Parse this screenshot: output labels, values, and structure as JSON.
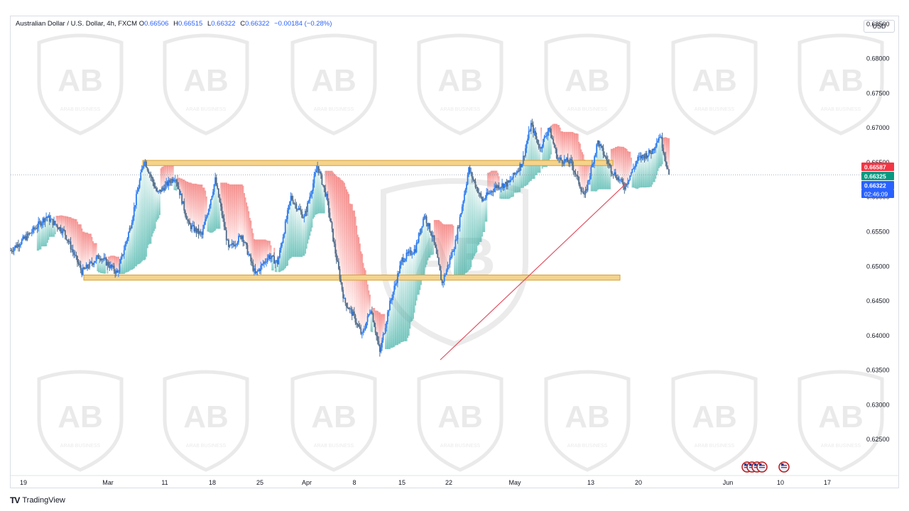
{
  "header": {
    "symbol": "Australian Dollar / U.S. Dollar, 4h, FXCM",
    "o_label": "O",
    "o_value": "0.66506",
    "h_label": "H",
    "h_value": "0.66515",
    "l_label": "L",
    "l_value": "0.66322",
    "c_label": "C",
    "c_value": "0.66322",
    "change": "−0.00184 (−0.28%)"
  },
  "currency_button": "USD",
  "footer": {
    "logo": "TV",
    "brand": "TradingView"
  },
  "watermark": {
    "logo": "AB",
    "text": "ARAB BUSINESS"
  },
  "colors": {
    "up": "#2e7df0",
    "down": "#4f6b8a",
    "price_line": "#2962ff",
    "cloud_up": "#26a69a",
    "cloud_down": "#ef5350",
    "zone_fill": "#f5d38a",
    "zone_border": "#d4a13a",
    "trendline": "#e05263",
    "tag_red": "#f23645",
    "tag_green": "#089981",
    "tag_blue": "#2962ff"
  },
  "chart_data": {
    "type": "candlestick",
    "title": "Australian Dollar / U.S. Dollar, 4h, FXCM",
    "ylim": [
      0.62,
      0.686
    ],
    "y_ticks": [
      "0.68500",
      "0.68000",
      "0.67500",
      "0.67000",
      "0.66500",
      "0.66000",
      "0.65500",
      "0.65000",
      "0.64500",
      "0.64000",
      "0.63500",
      "0.63000",
      "0.62500"
    ],
    "x_ticks": [
      "19",
      "Mar",
      "11",
      "18",
      "25",
      "Apr",
      "8",
      "15",
      "22",
      "May",
      "13",
      "20",
      "Jun",
      "10",
      "17"
    ],
    "price_path": [
      {
        "d": 0,
        "p": 0.6523
      },
      {
        "d": 4,
        "p": 0.6545
      },
      {
        "d": 8,
        "p": 0.6572
      },
      {
        "d": 12,
        "p": 0.655
      },
      {
        "d": 16,
        "p": 0.6492
      },
      {
        "d": 20,
        "p": 0.6515
      },
      {
        "d": 24,
        "p": 0.649
      },
      {
        "d": 27,
        "p": 0.656
      },
      {
        "d": 30,
        "p": 0.6655
      },
      {
        "d": 33,
        "p": 0.6605
      },
      {
        "d": 37,
        "p": 0.663
      },
      {
        "d": 40,
        "p": 0.656
      },
      {
        "d": 43,
        "p": 0.6545
      },
      {
        "d": 46,
        "p": 0.6625
      },
      {
        "d": 49,
        "p": 0.6525
      },
      {
        "d": 52,
        "p": 0.6545
      },
      {
        "d": 55,
        "p": 0.6488
      },
      {
        "d": 58,
        "p": 0.6515
      },
      {
        "d": 60,
        "p": 0.6505
      },
      {
        "d": 63,
        "p": 0.66
      },
      {
        "d": 66,
        "p": 0.657
      },
      {
        "d": 69,
        "p": 0.6645
      },
      {
        "d": 71,
        "p": 0.66
      },
      {
        "d": 73,
        "p": 0.652
      },
      {
        "d": 75,
        "p": 0.645
      },
      {
        "d": 77,
        "p": 0.643
      },
      {
        "d": 79,
        "p": 0.64
      },
      {
        "d": 81,
        "p": 0.644
      },
      {
        "d": 83,
        "p": 0.6375
      },
      {
        "d": 85,
        "p": 0.644
      },
      {
        "d": 88,
        "p": 0.651
      },
      {
        "d": 91,
        "p": 0.6525
      },
      {
        "d": 93,
        "p": 0.6575
      },
      {
        "d": 95,
        "p": 0.654
      },
      {
        "d": 97,
        "p": 0.6475
      },
      {
        "d": 100,
        "p": 0.6535
      },
      {
        "d": 103,
        "p": 0.664
      },
      {
        "d": 106,
        "p": 0.6595
      },
      {
        "d": 109,
        "p": 0.6615
      },
      {
        "d": 112,
        "p": 0.662
      },
      {
        "d": 115,
        "p": 0.665
      },
      {
        "d": 117,
        "p": 0.6705
      },
      {
        "d": 119,
        "p": 0.667
      },
      {
        "d": 121,
        "p": 0.67
      },
      {
        "d": 123,
        "p": 0.6655
      },
      {
        "d": 126,
        "p": 0.665
      },
      {
        "d": 129,
        "p": 0.66
      },
      {
        "d": 132,
        "p": 0.668
      },
      {
        "d": 135,
        "p": 0.664
      },
      {
        "d": 138,
        "p": 0.6615
      },
      {
        "d": 141,
        "p": 0.6655
      },
      {
        "d": 144,
        "p": 0.6665
      },
      {
        "d": 146,
        "p": 0.669
      },
      {
        "d": 148,
        "p": 0.6632
      }
    ],
    "price_axis_tags": [
      {
        "label": "0.66587",
        "color": "red"
      },
      {
        "label": "0.66325",
        "color": "green"
      },
      {
        "label": "0.66322",
        "color": "blue"
      },
      {
        "label": "02:46:09",
        "color": "blue"
      }
    ],
    "last_price": 0.66322,
    "annotations": {
      "resistance_zone": {
        "from": 0.66455,
        "to": 0.6653
      },
      "support_zone": {
        "from": 0.648,
        "to": 0.64875
      },
      "trendline": {
        "from_price": 0.6365,
        "to_price": 0.662
      }
    },
    "event_markers": [
      "us-flag",
      "us-flag",
      "us-flag",
      "us-flag",
      "us-flag"
    ]
  }
}
